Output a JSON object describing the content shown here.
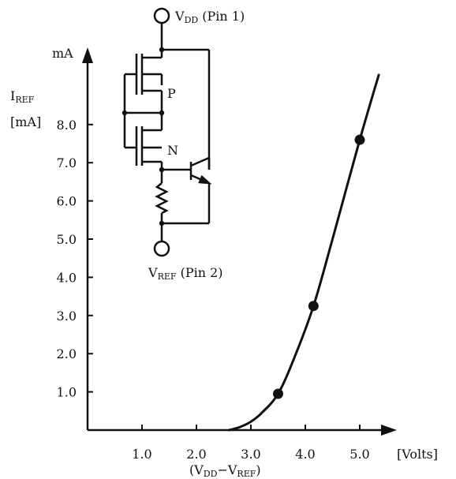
{
  "chart_data": {
    "type": "line",
    "x_unit": "[Volts]",
    "x_label_parts": [
      "(V",
      "DD",
      "−V",
      "REF",
      ")"
    ],
    "y_unit": "mA",
    "y_label_parts": [
      "I",
      "REF"
    ],
    "y_label_unit": "[mA]",
    "x_ticks": [
      1.0,
      2.0,
      3.0,
      4.0,
      5.0
    ],
    "x_tick_labels": [
      "1.0",
      "2.0",
      "3.0",
      "4.0",
      "5.0"
    ],
    "y_ticks": [
      1.0,
      2.0,
      3.0,
      4.0,
      5.0,
      6.0,
      7.0,
      8.0
    ],
    "y_tick_labels": [
      "1.0",
      "2.0",
      "3.0",
      "4.0",
      "5.0",
      "6.0",
      "7.0",
      "8.0"
    ],
    "xlim": [
      0,
      5.5
    ],
    "ylim": [
      0,
      9.3
    ],
    "series": [
      {
        "marked_points": [
          {
            "x": 3.5,
            "y": 0.95
          },
          {
            "x": 4.15,
            "y": 3.25
          },
          {
            "x": 5.0,
            "y": 7.6
          }
        ],
        "curve": [
          {
            "x": 2.6,
            "y": 0.0
          },
          {
            "x": 2.8,
            "y": 0.08
          },
          {
            "x": 3.0,
            "y": 0.22
          },
          {
            "x": 3.2,
            "y": 0.45
          },
          {
            "x": 3.5,
            "y": 0.95
          },
          {
            "x": 3.8,
            "y": 1.9
          },
          {
            "x": 4.15,
            "y": 3.25
          },
          {
            "x": 4.5,
            "y": 5.0
          },
          {
            "x": 5.0,
            "y": 7.6
          },
          {
            "x": 5.35,
            "y": 9.3
          }
        ]
      }
    ],
    "grid": false,
    "legend": "none"
  },
  "circuit": {
    "top_label_parts": [
      "V",
      "DD",
      " (Pin 1)"
    ],
    "bottom_label_parts": [
      "V",
      "REF",
      " (Pin 2)"
    ],
    "p_label": "P",
    "n_label": "N"
  },
  "colors": {
    "ink": "#111111",
    "background": "#ffffff"
  }
}
